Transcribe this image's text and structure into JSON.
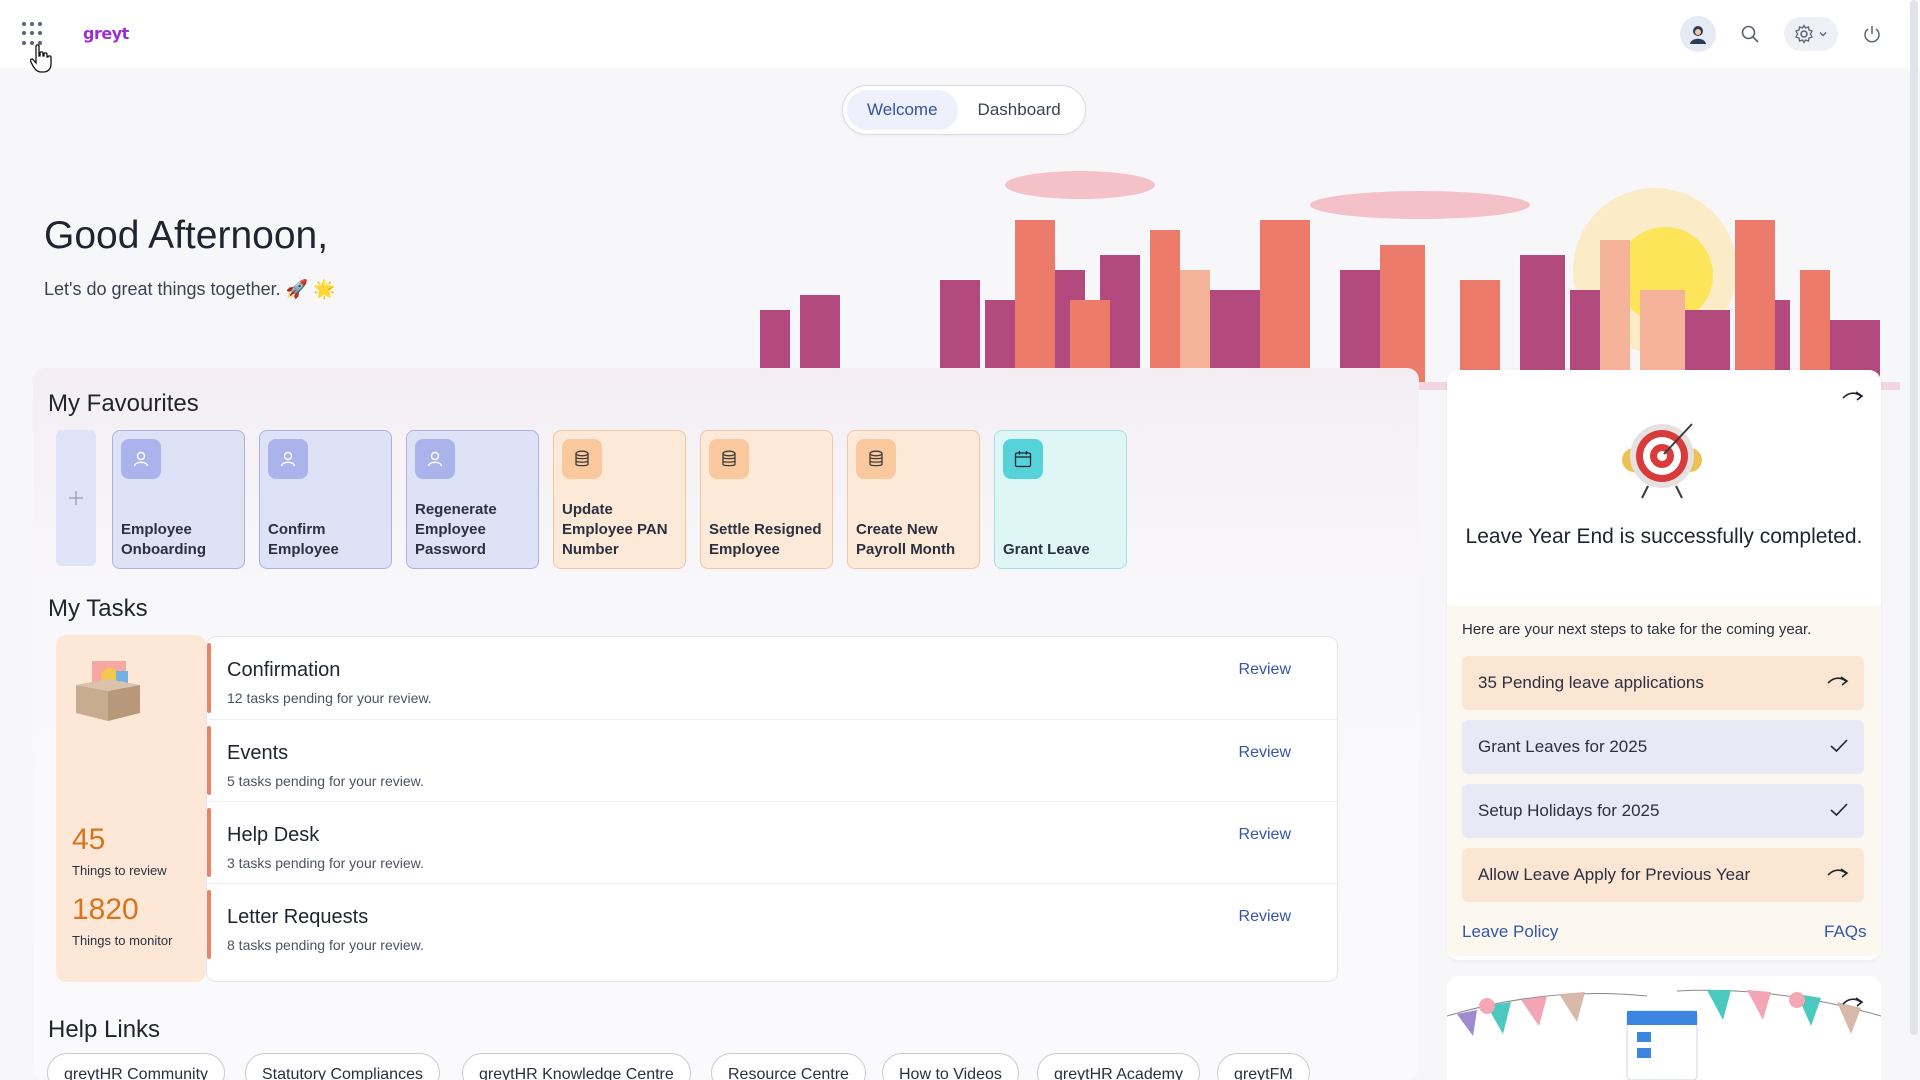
{
  "header": {
    "logo": "greyt",
    "icons": [
      "apps-grid-icon",
      "avatar-icon",
      "search-icon",
      "gear-icon",
      "chevron-down-icon",
      "power-icon"
    ]
  },
  "tabs": [
    {
      "label": "Welcome",
      "active": true
    },
    {
      "label": "Dashboard",
      "active": false
    }
  ],
  "greeting": {
    "title": "Good Afternoon,",
    "subtitle": "Let's do great things together. 🚀 🌟"
  },
  "favourites": {
    "title": "My Favourites",
    "items": [
      {
        "label": "Employee Onboarding",
        "style": "blue",
        "icon": "user-icon"
      },
      {
        "label": "Confirm Employee",
        "style": "blue",
        "icon": "user-icon"
      },
      {
        "label": "Regenerate Employee Password",
        "style": "blue",
        "icon": "user-icon"
      },
      {
        "label": "Update Employee PAN Number",
        "style": "orange",
        "icon": "database-icon"
      },
      {
        "label": "Settle Resigned Employee",
        "style": "orange",
        "icon": "database-icon"
      },
      {
        "label": "Create New Payroll Month",
        "style": "orange",
        "icon": "database-icon"
      },
      {
        "label": "Grant Leave",
        "style": "cyan",
        "icon": "calendar-icon"
      }
    ]
  },
  "tasks": {
    "title": "My Tasks",
    "review_count": "45",
    "review_label": "Things to review",
    "monitor_count": "1820",
    "monitor_label": "Things to monitor",
    "items": [
      {
        "title": "Confirmation",
        "subtitle": "12 tasks pending for your review.",
        "action": "Review"
      },
      {
        "title": "Events",
        "subtitle": "5 tasks pending for your review.",
        "action": "Review"
      },
      {
        "title": "Help Desk",
        "subtitle": "3 tasks pending for your review.",
        "action": "Review"
      },
      {
        "title": "Letter Requests",
        "subtitle": "8 tasks pending for your review.",
        "action": "Review"
      }
    ]
  },
  "help_links": {
    "title": "Help Links",
    "items": [
      "greytHR Community",
      "Statutory Compliances",
      "greytHR Knowledge Centre",
      "Resource Centre",
      "How to Videos",
      "greytHR Academy",
      "greytFM"
    ]
  },
  "leave_card": {
    "title": "Leave Year End is successfully completed.",
    "intro": "Here are your next steps to take for the coming year.",
    "steps": [
      {
        "label": "35 Pending leave applications",
        "state": "pending"
      },
      {
        "label": "Grant Leaves for 2025",
        "state": "done"
      },
      {
        "label": "Setup Holidays for 2025",
        "state": "done"
      },
      {
        "label": "Allow Leave Apply for Previous Year",
        "state": "pending"
      }
    ],
    "link_left": "Leave Policy",
    "link_right": "FAQs"
  },
  "colors": {
    "accent": "#3356a8",
    "task_count": "#d8751c",
    "brand": "#9b2fd1"
  }
}
